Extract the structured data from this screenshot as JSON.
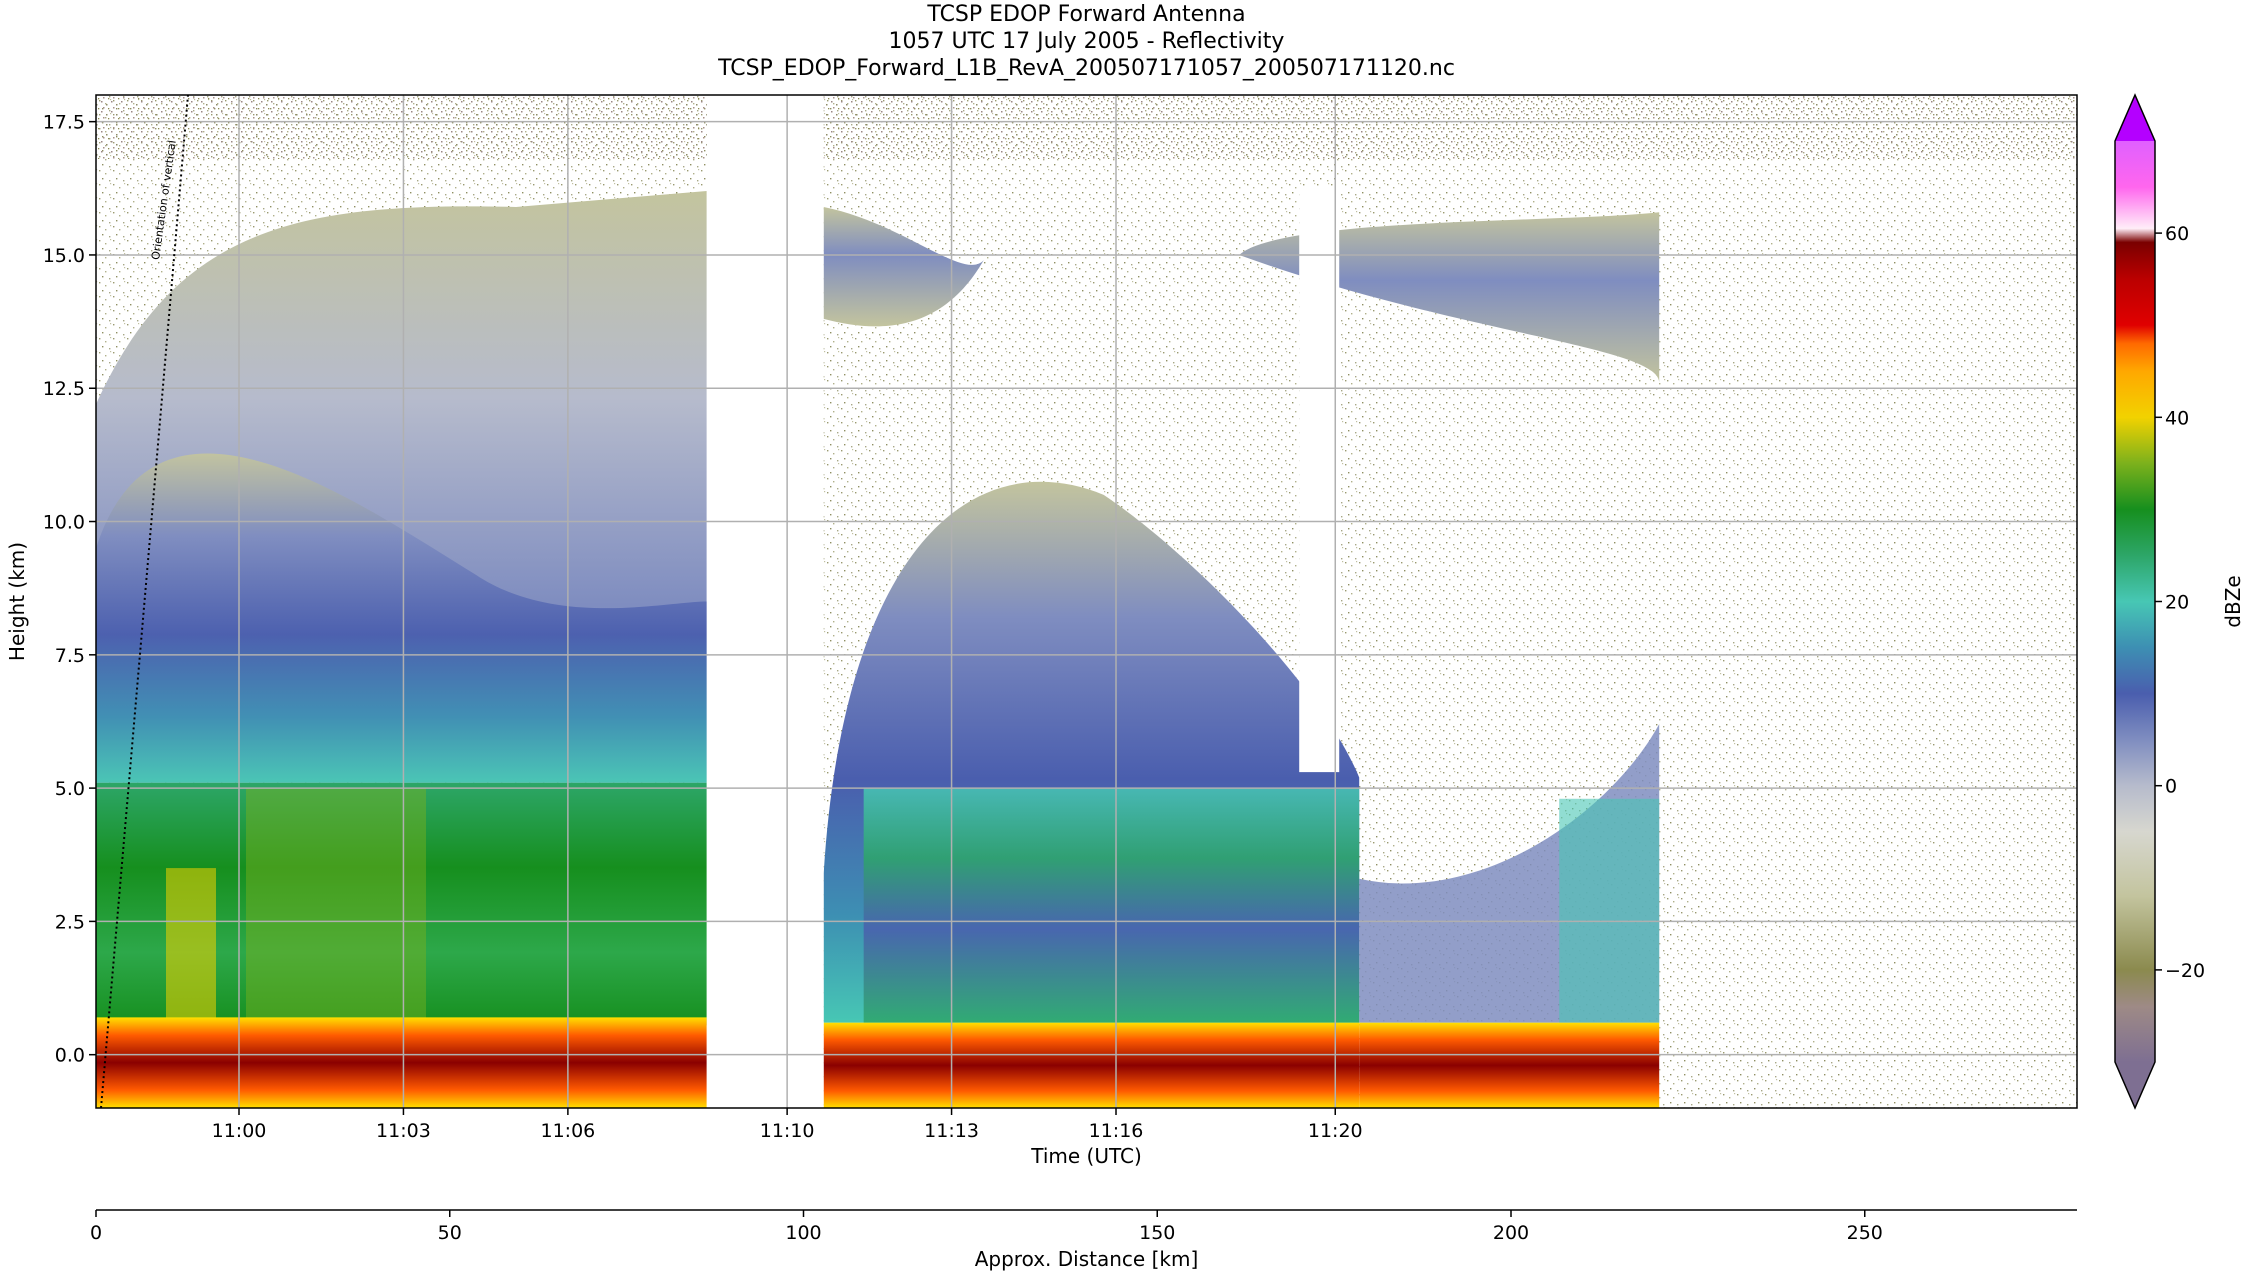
{
  "chart_data": {
    "type": "heatmap",
    "title": [
      "TCSP EDOP Forward Antenna",
      "1057 UTC 17 July 2005 - Reflectivity",
      "TCSP_EDOP_Forward_L1B_RevA_200507171057_200507171120.nc"
    ],
    "xlabel": "Time (UTC)",
    "ylabel": "Height (km)",
    "x2label": "Approx. Distance [km]",
    "colorbar_label": "dBZe",
    "time_range": [
      "10:57:23",
      "11:20:30"
    ],
    "ylim": [
      -1.0,
      18.0
    ],
    "x2lim": [
      0,
      280
    ],
    "clim": [
      -30,
      70
    ],
    "x_ticks": [
      "11:00",
      "11:03",
      "11:06",
      "11:10",
      "11:13",
      "11:16",
      "11:20"
    ],
    "x_tick_seconds": [
      0,
      180,
      360,
      600,
      780,
      960,
      1200
    ],
    "y_ticks": [
      0.0,
      2.5,
      5.0,
      7.5,
      10.0,
      12.5,
      15.0,
      17.5
    ],
    "y_tick_labels": [
      "0.0",
      "2.5",
      "5.0",
      "7.5",
      "10.0",
      "12.5",
      "15.0",
      "17.5"
    ],
    "x2_ticks": [
      0,
      50,
      100,
      150,
      200,
      250
    ],
    "colorbar_ticks": [
      -20,
      0,
      20,
      40,
      60
    ],
    "colorbar_tick_labels": [
      "−20",
      "0",
      "20",
      "40",
      "60"
    ],
    "colormap": [
      {
        "dbz": -30,
        "color": "#7e6f92"
      },
      {
        "dbz": -24,
        "color": "#9e8a86"
      },
      {
        "dbz": -20,
        "color": "#8b8a4e"
      },
      {
        "dbz": -12,
        "color": "#c3c49e"
      },
      {
        "dbz": -5,
        "color": "#d7d7cf"
      },
      {
        "dbz": 0,
        "color": "#b6bbcc"
      },
      {
        "dbz": 5,
        "color": "#7f8dc0"
      },
      {
        "dbz": 10,
        "color": "#4a5eae"
      },
      {
        "dbz": 15,
        "color": "#3d8fb3"
      },
      {
        "dbz": 20,
        "color": "#47c7b4"
      },
      {
        "dbz": 25,
        "color": "#2da668"
      },
      {
        "dbz": 30,
        "color": "#168f1e"
      },
      {
        "dbz": 35,
        "color": "#7cb11c"
      },
      {
        "dbz": 40,
        "color": "#f2d200"
      },
      {
        "dbz": 45,
        "color": "#ffa800"
      },
      {
        "dbz": 48,
        "color": "#ff6a00"
      },
      {
        "dbz": 50,
        "color": "#e00000"
      },
      {
        "dbz": 55,
        "color": "#bb0000"
      },
      {
        "dbz": 59,
        "color": "#7a0000"
      },
      {
        "dbz": 61,
        "color": "#ffeef8"
      },
      {
        "dbz": 65,
        "color": "#ff66ee"
      },
      {
        "dbz": 70,
        "color": "#b400ff"
      }
    ],
    "data_gaps_seconds": [
      [
        512,
        640
      ],
      [
        1270,
        1387
      ]
    ],
    "annotations": [
      "Orientation of vertical"
    ]
  }
}
